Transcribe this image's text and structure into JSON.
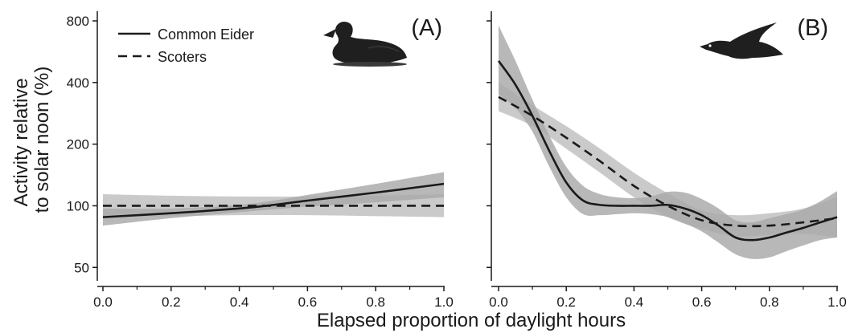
{
  "chart_data": {
    "type": "line",
    "xlabel": "Elapsed proportion of daylight hours",
    "ylabel": [
      "Activity relative",
      "to solar noon (%)"
    ],
    "x_ticks": [
      "0.0",
      "0.2",
      "0.4",
      "0.6",
      "0.8",
      "1.0"
    ],
    "xlim": [
      0,
      1
    ],
    "y_scale": "log",
    "y_ticks": [
      50,
      100,
      200,
      400,
      800
    ],
    "ylim": [
      43,
      860
    ],
    "grid": false,
    "legend": {
      "placement": "top-left of panel A",
      "entries": [
        {
          "label": "Common Eider",
          "style": "solid"
        },
        {
          "label": "Scoters",
          "style": "dashed"
        }
      ]
    },
    "panels": [
      {
        "label": "(A)",
        "icon": "swimming-duck-silhouette",
        "series": [
          {
            "name": "Common Eider",
            "style": "solid",
            "x": [
              0,
              0.2,
              0.4,
              0.5,
              0.6,
              0.8,
              1.0
            ],
            "y": [
              88,
              92,
              97,
              101,
              106,
              116,
              128
            ],
            "ci_low": [
              80,
              87,
              93,
              96,
              99,
              104,
              110
            ],
            "ci_high": [
              97,
              97,
              101,
              106,
              113,
              128,
              146
            ]
          },
          {
            "name": "Scoters",
            "style": "dashed",
            "x": [
              0,
              0.2,
              0.4,
              0.6,
              0.8,
              1.0
            ],
            "y": [
              100,
              100,
              100,
              100,
              100,
              100
            ],
            "ci_low": [
              88,
              89,
              90,
              90,
              89,
              88
            ],
            "ci_high": [
              114,
              112,
              111,
              111,
              112,
              114
            ]
          }
        ]
      },
      {
        "label": "(B)",
        "icon": "flying-duck-silhouette",
        "series": [
          {
            "name": "Common Eider",
            "style": "solid",
            "x": [
              0,
              0.05,
              0.1,
              0.15,
              0.2,
              0.25,
              0.3,
              0.35,
              0.4,
              0.45,
              0.5,
              0.55,
              0.6,
              0.65,
              0.7,
              0.75,
              0.8,
              0.85,
              0.9,
              0.95,
              1.0
            ],
            "y": [
              510,
              390,
              275,
              185,
              130,
              106,
              101,
              100,
              100,
              100,
              101,
              97,
              90,
              80,
              70,
              68,
              70,
              74,
              78,
              83,
              88
            ],
            "ci_low": [
              350,
              300,
              230,
              155,
              110,
              91,
              90,
              91,
              92,
              91,
              88,
              82,
              75,
              66,
              58,
              55,
              56,
              60,
              64,
              68,
              70
            ],
            "ci_high": [
              760,
              510,
              330,
              220,
              155,
              125,
              114,
              110,
              109,
              111,
              117,
              116,
              108,
              97,
              85,
              83,
              87,
              91,
              96,
              105,
              118
            ]
          },
          {
            "name": "Scoters",
            "style": "dashed",
            "x": [
              0,
              0.1,
              0.2,
              0.3,
              0.4,
              0.5,
              0.6,
              0.7,
              0.8,
              0.9,
              1.0
            ],
            "y": [
              340,
              275,
              215,
              165,
              125,
              100,
              85,
              80,
              80,
              83,
              87
            ],
            "ci_low": [
              290,
              245,
              190,
              145,
              110,
              88,
              77,
              71,
              72,
              73,
              70
            ],
            "ci_high": [
              400,
              310,
              245,
              190,
              145,
              115,
              95,
              90,
              92,
              97,
              110
            ]
          }
        ]
      }
    ]
  }
}
